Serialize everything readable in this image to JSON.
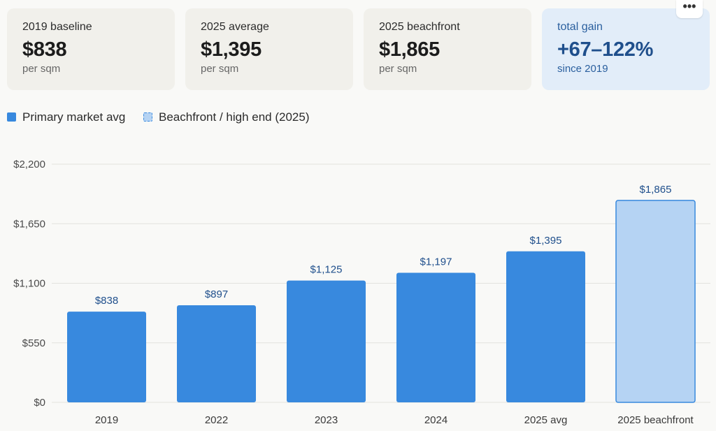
{
  "menu": {
    "more_label": "•••",
    "more_icon": "more-horizontal-icon"
  },
  "cards": [
    {
      "label": "2019 baseline",
      "value": "$838",
      "sub": "per sqm"
    },
    {
      "label": "2025 average",
      "value": "$1,395",
      "sub": "per sqm"
    },
    {
      "label": "2025 beachfront",
      "value": "$1,865",
      "sub": "per sqm"
    },
    {
      "label": "total gain",
      "value": "+67–122%",
      "sub": "since 2019",
      "accent": true
    }
  ],
  "legend": {
    "primary": "Primary market avg",
    "beachfront": "Beachfront / high end (2025)"
  },
  "colors": {
    "primary": "#3889de",
    "beachfront_fill": "#b5d3f3",
    "beachfront_stroke": "#3889de",
    "value_label": "#1f4f8c"
  },
  "chart_data": {
    "type": "bar",
    "categories": [
      "2019",
      "2022",
      "2023",
      "2024",
      "2025 avg",
      "2025 beachfront"
    ],
    "series": [
      {
        "name": "Primary market avg",
        "values": [
          838,
          897,
          1125,
          1197,
          1395,
          null
        ]
      },
      {
        "name": "Beachfront / high end (2025)",
        "values": [
          null,
          null,
          null,
          null,
          null,
          1865
        ]
      }
    ],
    "data_labels": [
      "$838",
      "$897",
      "$1,125",
      "$1,197",
      "$1,395",
      "$1,865"
    ],
    "yticks": [
      0,
      550,
      1100,
      1650,
      2200
    ],
    "ytick_labels": [
      "$0",
      "$550",
      "$1,100",
      "$1,650",
      "$2,200"
    ],
    "ylim": [
      0,
      2200
    ],
    "grid": true,
    "legend_position": "top-left"
  }
}
